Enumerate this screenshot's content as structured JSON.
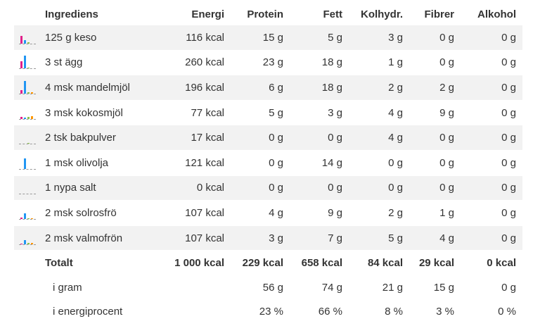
{
  "headers": {
    "ingredient": "Ingrediens",
    "energy": "Energi",
    "protein": "Protein",
    "fat": "Fett",
    "carbs": "Kolhydr.",
    "fiber": "Fibrer",
    "alcohol": "Alkohol"
  },
  "colors": {
    "protein": "#e0218a",
    "fat": "#2196f3",
    "carbs": "#8bc34a",
    "fiber": "#ff9800",
    "row_stripe": "#f2f2f2"
  },
  "rows": [
    {
      "name": "125 g keso",
      "energy": "116 kcal",
      "protein": "15 g",
      "fat": "5 g",
      "carbs": "3 g",
      "fiber": "0 g",
      "alcohol": "0 g",
      "icon": "macro-bars-icon",
      "bars": [
        0.6,
        0.25,
        0.12,
        0.0
      ]
    },
    {
      "name": "3 st ägg",
      "energy": "260 kcal",
      "protein": "23 g",
      "fat": "18 g",
      "carbs": "1 g",
      "fiber": "0 g",
      "alcohol": "0 g",
      "icon": "macro-bars-icon",
      "bars": [
        0.55,
        1.0,
        0.05,
        0.0
      ]
    },
    {
      "name": "4 msk mandelmjöl",
      "energy": "196 kcal",
      "protein": "6 g",
      "fat": "18 g",
      "carbs": "2 g",
      "fiber": "2 g",
      "alcohol": "0 g",
      "icon": "macro-bars-icon",
      "bars": [
        0.25,
        1.0,
        0.1,
        0.1
      ]
    },
    {
      "name": "3 msk kokosmjöl",
      "energy": "77 kcal",
      "protein": "5 g",
      "fat": "3 g",
      "carbs": "4 g",
      "fiber": "9 g",
      "alcohol": "0 g",
      "icon": "macro-bars-icon",
      "bars": [
        0.15,
        0.1,
        0.15,
        0.2
      ]
    },
    {
      "name": "2 tsk bakpulver",
      "energy": "17 kcal",
      "protein": "0 g",
      "fat": "0 g",
      "carbs": "4 g",
      "fiber": "0 g",
      "alcohol": "0 g",
      "icon": "macro-bars-icon",
      "bars": [
        0.0,
        0.0,
        0.06,
        0.0
      ]
    },
    {
      "name": "1 msk olivolja",
      "energy": "121 kcal",
      "protein": "0 g",
      "fat": "14 g",
      "carbs": "0 g",
      "fiber": "0 g",
      "alcohol": "0 g",
      "icon": "macro-bars-icon",
      "bars": [
        0.0,
        0.85,
        0.0,
        0.0
      ]
    },
    {
      "name": "1 nypa salt",
      "energy": "0 kcal",
      "protein": "0 g",
      "fat": "0 g",
      "carbs": "0 g",
      "fiber": "0 g",
      "alcohol": "0 g",
      "icon": "macro-bars-icon",
      "bars": [
        0.0,
        0.0,
        0.0,
        0.0
      ]
    },
    {
      "name": "2 msk solrosfrö",
      "energy": "107 kcal",
      "protein": "4 g",
      "fat": "9 g",
      "carbs": "2 g",
      "fiber": "1 g",
      "alcohol": "0 g",
      "icon": "macro-bars-icon",
      "bars": [
        0.1,
        0.45,
        0.06,
        0.05
      ]
    },
    {
      "name": "2 msk valmofrön",
      "energy": "107 kcal",
      "protein": "3 g",
      "fat": "7 g",
      "carbs": "5 g",
      "fiber": "4 g",
      "alcohol": "0 g",
      "icon": "macro-bars-icon",
      "bars": [
        0.08,
        0.35,
        0.12,
        0.12
      ]
    }
  ],
  "total": {
    "label": "Totalt",
    "energy": "1 000 kcal",
    "protein": "229 kcal",
    "fat": "658 kcal",
    "carbs": "84 kcal",
    "fiber": "29 kcal",
    "alcohol": "0 kcal"
  },
  "grams": {
    "label": "i gram",
    "protein": "56 g",
    "fat": "74 g",
    "carbs": "21 g",
    "fiber": "15 g",
    "alcohol": "0 g"
  },
  "percent": {
    "label": "i energiprocent",
    "protein": "23 %",
    "fat": "66 %",
    "carbs": "8 %",
    "fiber": "3 %",
    "alcohol": "0 %"
  }
}
